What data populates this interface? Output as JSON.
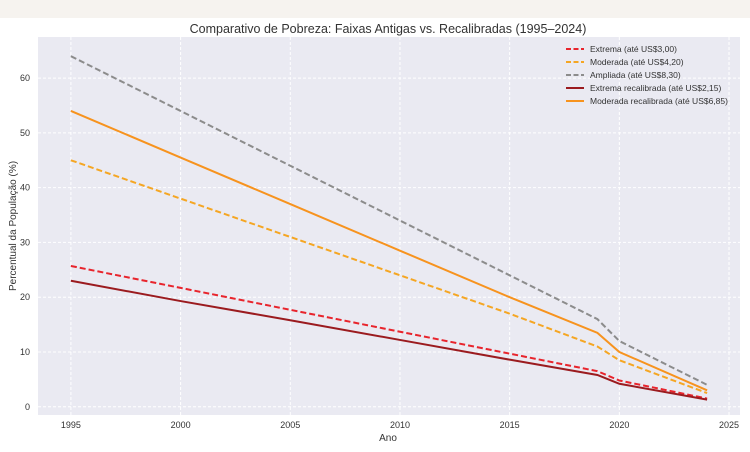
{
  "chart_data": {
    "type": "line",
    "title": "Comparativo de Pobreza: Faixas Antigas vs. Recalibradas (1995–2024)",
    "xlabel": "Ano",
    "ylabel": "Percentual da População (%)",
    "xlim": [
      1993.5,
      2025.5
    ],
    "ylim": [
      -1.5,
      67.5
    ],
    "xticks": [
      1995,
      2000,
      2005,
      2010,
      2015,
      2020,
      2025
    ],
    "yticks": [
      0,
      10,
      20,
      30,
      40,
      50,
      60
    ],
    "grid": true,
    "legend_position": "top-right",
    "x": [
      1995,
      2000,
      2005,
      2010,
      2015,
      2019,
      2020,
      2024
    ],
    "series": [
      {
        "name": "Extrema (até US$3,00)",
        "color": "#e8242c",
        "dashed": true,
        "values": [
          25.7,
          21.7,
          17.7,
          13.7,
          9.7,
          6.5,
          4.8,
          1.5
        ]
      },
      {
        "name": "Moderada (até US$4,20)",
        "color": "#f5a623",
        "dashed": true,
        "values": [
          45,
          38,
          31,
          24,
          17,
          11,
          8.5,
          2.5
        ]
      },
      {
        "name": "Ampliada (até US$8,30)",
        "color": "#8c8c8c",
        "dashed": true,
        "values": [
          64,
          54,
          44,
          34,
          24,
          16,
          12,
          4
        ]
      },
      {
        "name": "Extrema recalibrada (até US$2,15)",
        "color": "#9b1b1f",
        "dashed": false,
        "values": [
          23,
          19.3,
          15.8,
          12.2,
          8.6,
          5.8,
          4.2,
          1.3
        ]
      },
      {
        "name": "Moderada recalibrada (até US$6,85)",
        "color": "#f7931e",
        "dashed": false,
        "values": [
          54,
          45.5,
          37,
          28.5,
          20,
          13.5,
          10,
          3
        ]
      }
    ]
  }
}
